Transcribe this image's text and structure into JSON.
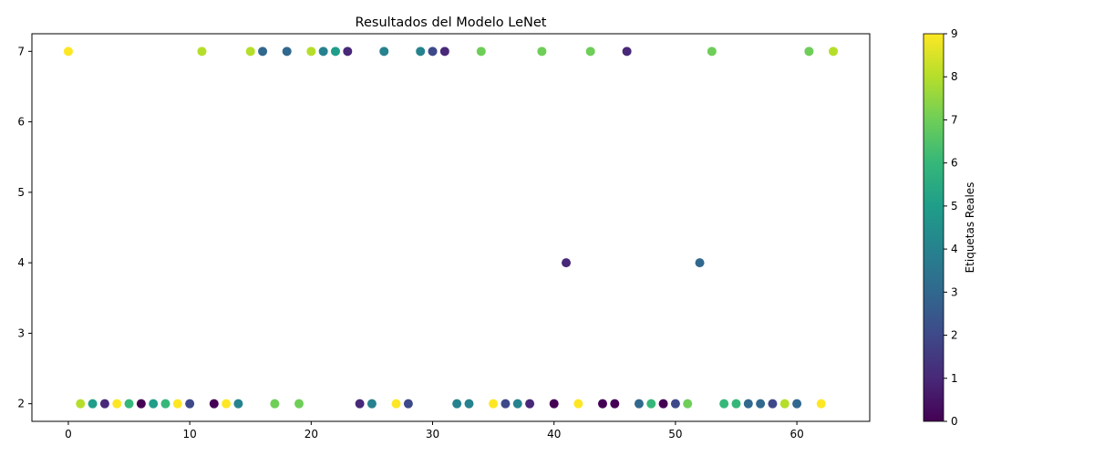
{
  "chart_data": {
    "type": "scatter",
    "title": "Resultados del Modelo LeNet",
    "xlabel": "",
    "ylabel": "",
    "xlim": [
      -3,
      66
    ],
    "ylim": [
      1.75,
      7.25
    ],
    "xticks": [
      0,
      10,
      20,
      30,
      40,
      50,
      60
    ],
    "yticks": [
      2,
      3,
      4,
      5,
      6,
      7
    ],
    "colorbar": {
      "label": "Etiquetas Reales",
      "range": [
        0,
        9
      ],
      "ticks": [
        0,
        1,
        2,
        3,
        4,
        5,
        6,
        7,
        8,
        9
      ],
      "colormap": "viridis"
    },
    "points": [
      {
        "x": 0,
        "y": 7,
        "c": 9
      },
      {
        "x": 1,
        "y": 2,
        "c": 8
      },
      {
        "x": 2,
        "y": 2,
        "c": 5
      },
      {
        "x": 3,
        "y": 2,
        "c": 1
      },
      {
        "x": 4,
        "y": 2,
        "c": 9
      },
      {
        "x": 5,
        "y": 2,
        "c": 6
      },
      {
        "x": 6,
        "y": 2,
        "c": 0
      },
      {
        "x": 7,
        "y": 2,
        "c": 5
      },
      {
        "x": 8,
        "y": 2,
        "c": 6
      },
      {
        "x": 9,
        "y": 2,
        "c": 9
      },
      {
        "x": 10,
        "y": 2,
        "c": 2
      },
      {
        "x": 11,
        "y": 7,
        "c": 8
      },
      {
        "x": 12,
        "y": 2,
        "c": 0
      },
      {
        "x": 13,
        "y": 2,
        "c": 9
      },
      {
        "x": 14,
        "y": 2,
        "c": 4
      },
      {
        "x": 15,
        "y": 7,
        "c": 8
      },
      {
        "x": 16,
        "y": 7,
        "c": 3
      },
      {
        "x": 17,
        "y": 2,
        "c": 7
      },
      {
        "x": 18,
        "y": 7,
        "c": 3
      },
      {
        "x": 19,
        "y": 2,
        "c": 7
      },
      {
        "x": 20,
        "y": 7,
        "c": 8
      },
      {
        "x": 21,
        "y": 7,
        "c": 4
      },
      {
        "x": 22,
        "y": 7,
        "c": 5
      },
      {
        "x": 23,
        "y": 7,
        "c": 1
      },
      {
        "x": 24,
        "y": 2,
        "c": 1
      },
      {
        "x": 25,
        "y": 2,
        "c": 4
      },
      {
        "x": 26,
        "y": 7,
        "c": 4
      },
      {
        "x": 27,
        "y": 2,
        "c": 9
      },
      {
        "x": 28,
        "y": 2,
        "c": 2
      },
      {
        "x": 29,
        "y": 7,
        "c": 4
      },
      {
        "x": 30,
        "y": 7,
        "c": 2
      },
      {
        "x": 31,
        "y": 7,
        "c": 1
      },
      {
        "x": 32,
        "y": 2,
        "c": 4
      },
      {
        "x": 33,
        "y": 2,
        "c": 4
      },
      {
        "x": 34,
        "y": 7,
        "c": 7
      },
      {
        "x": 35,
        "y": 2,
        "c": 9
      },
      {
        "x": 36,
        "y": 2,
        "c": 2
      },
      {
        "x": 37,
        "y": 2,
        "c": 4
      },
      {
        "x": 38,
        "y": 2,
        "c": 1
      },
      {
        "x": 39,
        "y": 7,
        "c": 7
      },
      {
        "x": 40,
        "y": 2,
        "c": 0
      },
      {
        "x": 41,
        "y": 4,
        "c": 1
      },
      {
        "x": 42,
        "y": 2,
        "c": 9
      },
      {
        "x": 43,
        "y": 7,
        "c": 7
      },
      {
        "x": 44,
        "y": 2,
        "c": 0
      },
      {
        "x": 45,
        "y": 2,
        "c": 0
      },
      {
        "x": 46,
        "y": 7,
        "c": 1
      },
      {
        "x": 47,
        "y": 2,
        "c": 3
      },
      {
        "x": 48,
        "y": 2,
        "c": 6
      },
      {
        "x": 49,
        "y": 2,
        "c": 0
      },
      {
        "x": 50,
        "y": 2,
        "c": 2
      },
      {
        "x": 51,
        "y": 2,
        "c": 7
      },
      {
        "x": 52,
        "y": 4,
        "c": 3
      },
      {
        "x": 53,
        "y": 7,
        "c": 7
      },
      {
        "x": 54,
        "y": 2,
        "c": 6
      },
      {
        "x": 55,
        "y": 2,
        "c": 6
      },
      {
        "x": 56,
        "y": 2,
        "c": 3
      },
      {
        "x": 57,
        "y": 2,
        "c": 3
      },
      {
        "x": 58,
        "y": 2,
        "c": 2
      },
      {
        "x": 59,
        "y": 2,
        "c": 8
      },
      {
        "x": 60,
        "y": 2,
        "c": 3
      },
      {
        "x": 61,
        "y": 7,
        "c": 7
      },
      {
        "x": 62,
        "y": 2,
        "c": 9
      },
      {
        "x": 63,
        "y": 7,
        "c": 8
      }
    ]
  },
  "colors": {
    "viridis": [
      "#440154",
      "#482878",
      "#3e4989",
      "#31688e",
      "#26828e",
      "#1f9e89",
      "#35b779",
      "#6ece58",
      "#b5de2b",
      "#fde725"
    ],
    "axis": "#000000",
    "background": "#ffffff"
  }
}
